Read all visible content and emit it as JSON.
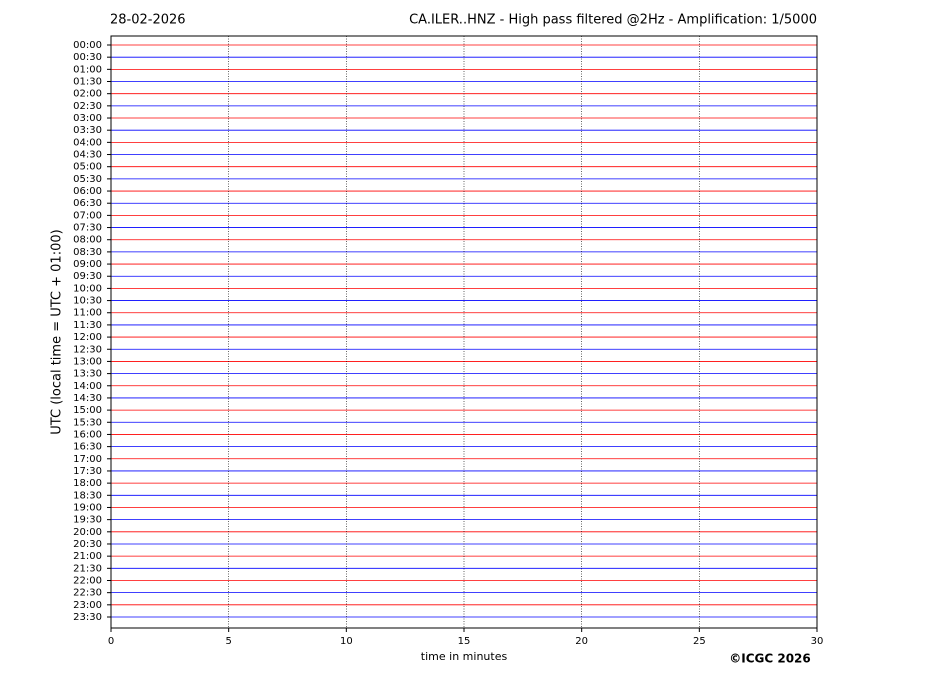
{
  "chart_data": {
    "type": "helicorder",
    "date": "28-02-2026",
    "title": "CA.ILER..HNZ - High pass filtered @2Hz - Amplification: 1/5000",
    "ylabel": "UTC (local time = UTC + 01:00)",
    "xlabel": "time in minutes",
    "categories": [
      "00:00",
      "00:30",
      "01:00",
      "01:30",
      "02:00",
      "02:30",
      "03:00",
      "03:30",
      "04:00",
      "04:30",
      "05:00",
      "05:30",
      "06:00",
      "06:30",
      "07:00",
      "07:30",
      "08:00",
      "08:30",
      "09:00",
      "09:30",
      "10:00",
      "10:30",
      "11:00",
      "11:30",
      "12:00",
      "12:30",
      "13:00",
      "13:30",
      "14:00",
      "14:30",
      "15:00",
      "15:30",
      "16:00",
      "16:30",
      "17:00",
      "17:30",
      "18:00",
      "18:30",
      "19:00",
      "19:30",
      "20:00",
      "20:30",
      "21:00",
      "21:30",
      "22:00",
      "22:30",
      "23:00",
      "23:30"
    ],
    "colors": [
      "#ff0000",
      "#0000ff"
    ],
    "xlim": [
      0,
      30
    ],
    "xticks": [
      0,
      5,
      10,
      15,
      20,
      25,
      30
    ],
    "grid": true
  },
  "footer": {
    "copyright": "©ICGC 2026"
  }
}
